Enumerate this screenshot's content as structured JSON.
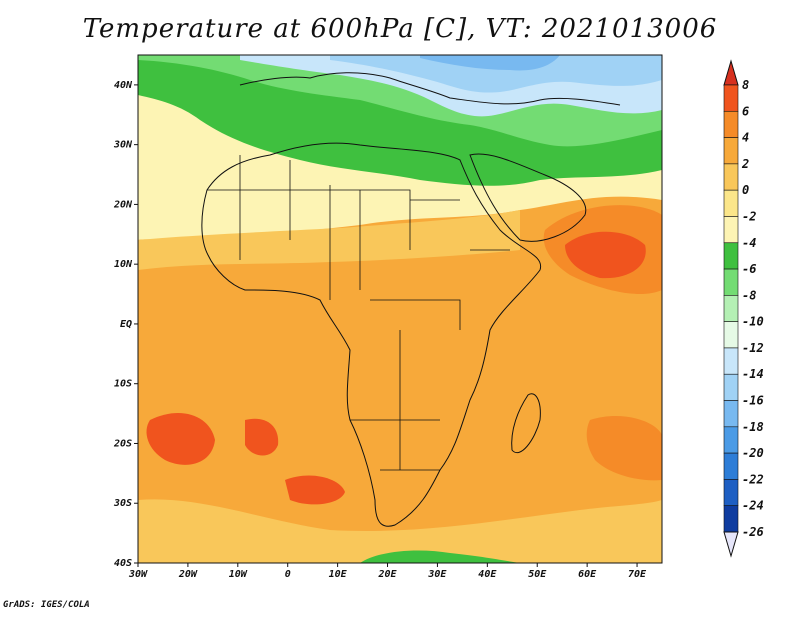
{
  "title": "Temperature at 600hPa [C], VT: 2021013006",
  "footer": "GrADS: IGES/COLA",
  "map": {
    "lon_range": [
      -30,
      75
    ],
    "lat_range": [
      -40,
      45
    ],
    "lon_ticks": [
      {
        "value": -30,
        "label": "30W"
      },
      {
        "value": -20,
        "label": "20W"
      },
      {
        "value": -10,
        "label": "10W"
      },
      {
        "value": 0,
        "label": "0"
      },
      {
        "value": 10,
        "label": "10E"
      },
      {
        "value": 20,
        "label": "20E"
      },
      {
        "value": 30,
        "label": "30E"
      },
      {
        "value": 40,
        "label": "40E"
      },
      {
        "value": 50,
        "label": "50E"
      },
      {
        "value": 60,
        "label": "60E"
      },
      {
        "value": 70,
        "label": "70E"
      }
    ],
    "lat_ticks": [
      {
        "value": 40,
        "label": "40N"
      },
      {
        "value": 30,
        "label": "30N"
      },
      {
        "value": 20,
        "label": "20N"
      },
      {
        "value": 10,
        "label": "10N"
      },
      {
        "value": 0,
        "label": "EQ"
      },
      {
        "value": -10,
        "label": "10S"
      },
      {
        "value": -20,
        "label": "20S"
      },
      {
        "value": -30,
        "label": "30S"
      },
      {
        "value": -40,
        "label": "40S"
      }
    ]
  },
  "colorbar": {
    "levels": [
      "8",
      "6",
      "4",
      "2",
      "0",
      "-2",
      "-4",
      "-6",
      "-8",
      "-10",
      "-12",
      "-14",
      "-16",
      "-18",
      "-20",
      "-22",
      "-24",
      "-26"
    ],
    "colors": [
      "#d7301f",
      "#f0541e",
      "#f58b28",
      "#f7a93a",
      "#f9c75a",
      "#fbe68a",
      "#fdf4b4",
      "#3fc03f",
      "#73dc73",
      "#b4f0b4",
      "#e6fae6",
      "#c8e6fa",
      "#a0d2f5",
      "#78b9f0",
      "#4b9be6",
      "#2d7dd7",
      "#1e5fc3",
      "#0f3ca0",
      "#0a1a78",
      "#e6e6fa"
    ]
  },
  "chart_data": {
    "type": "heatmap",
    "title": "Temperature at 600hPa [C], VT: 2021013006",
    "variable": "Temperature",
    "level": "600hPa",
    "units": "C",
    "valid_time": "2021013006",
    "x_range": [
      -30,
      75
    ],
    "y_range": [
      -40,
      45
    ],
    "color_levels": [
      8,
      6,
      4,
      2,
      0,
      -2,
      -4,
      -6,
      -8,
      -10,
      -12,
      -14,
      -16,
      -18,
      -20,
      -22,
      -24,
      -26
    ]
  }
}
